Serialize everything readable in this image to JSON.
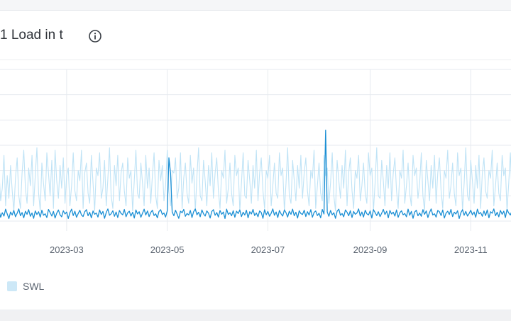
{
  "panel": {
    "title": "1 Load in t",
    "info_icon": "info-circle-icon"
  },
  "colors": {
    "series_light": "#bfe3f6",
    "series_dark": "#1b8fd4",
    "grid": "#e6eaef",
    "tick_text": "#5b6470",
    "legend_swatch": "#cde8f7"
  },
  "legend": {
    "label": "SWL"
  },
  "chart_data": {
    "type": "line",
    "title": "1 Load in t",
    "xlabel": "",
    "ylabel": "",
    "x_ticks": [
      "2023-03",
      "2023-05",
      "2023-07",
      "2023-09",
      "2023-11"
    ],
    "x_range": [
      "2023-01-11",
      "2023-12-04"
    ],
    "y_range": [
      0,
      6
    ],
    "grid": true,
    "legend_position": "bottom-left",
    "series": [
      {
        "name": "SWL",
        "style": "light",
        "sampling": "daily",
        "start": "2023-01-11",
        "values": [
          1.6,
          2.3,
          0.4,
          1.9,
          1.1,
          2.7,
          0.3,
          1.5,
          2.0,
          0.8,
          1.3,
          2.6,
          0.6,
          1.8,
          0.9,
          2.2,
          1.2,
          0.4,
          1.7,
          2.5,
          1.0,
          0.5,
          1.9,
          2.8,
          1.3,
          0.7,
          2.1,
          1.4,
          2.6,
          0.6,
          1.8,
          2.9,
          1.1,
          0.4,
          2.3,
          1.5,
          0.8,
          2.7,
          1.9,
          1.0,
          2.4,
          0.5,
          2.8,
          1.6,
          0.9,
          2.2,
          1.3,
          2.5,
          0.7,
          1.8,
          2.1,
          0.6,
          1.4,
          2.7,
          1.2,
          0.8,
          2.0,
          1.6,
          2.8,
          0.5,
          1.9,
          2.3,
          1.1,
          0.7,
          2.6,
          1.5,
          0.4,
          2.1,
          1.8,
          2.7,
          0.9,
          1.3,
          2.4,
          0.6,
          1.7,
          2.9,
          1.0,
          0.5,
          2.2,
          1.4,
          2.6,
          0.8,
          1.9,
          2.3,
          1.2,
          0.6,
          2.5,
          1.7,
          2.0,
          0.4,
          1.6,
          2.8,
          1.1,
          0.9,
          2.3,
          1.5,
          0.6,
          2.6,
          1.3,
          2.1,
          0.7,
          1.8,
          2.7,
          1.0,
          0.5,
          2.4,
          1.6,
          2.2,
          0.8,
          1.4,
          2.8,
          1.2,
          0.6,
          2.0,
          1.9,
          2.5,
          0.9,
          1.3,
          2.7,
          0.5,
          1.7,
          2.3,
          1.1,
          0.7,
          2.6,
          1.5,
          2.1,
          0.4,
          1.8,
          2.9,
          1.0,
          0.8,
          2.4,
          1.6,
          0.6,
          2.2,
          1.4,
          2.7,
          0.9,
          1.9,
          2.5,
          1.2,
          0.5,
          2.0,
          1.7,
          2.8,
          0.7,
          1.3,
          2.3,
          1.1,
          0.6,
          2.6,
          1.8,
          2.1,
          0.4,
          1.5,
          2.7,
          1.0,
          0.9,
          2.4,
          1.6,
          0.7,
          2.2,
          1.3,
          2.8,
          0.8,
          1.9,
          2.5,
          1.2,
          0.5,
          2.0,
          1.7,
          2.6,
          0.6,
          1.4,
          2.3,
          1.1,
          0.9,
          2.7,
          1.8,
          2.1,
          0.4,
          1.5,
          2.9,
          1.0,
          0.7,
          2.4,
          1.6,
          0.8,
          2.2,
          1.3,
          2.6,
          0.9,
          1.9,
          2.5,
          1.2,
          0.6,
          2.0,
          1.7,
          2.8,
          0.5,
          1.4,
          2.3,
          1.1,
          0.8,
          2.6,
          1.8,
          2.1,
          0.7,
          1.5,
          2.7,
          1.0,
          0.4,
          2.4,
          1.6,
          0.9,
          2.2,
          1.3,
          2.8,
          0.6,
          1.9,
          2.5,
          1.2,
          0.5,
          2.0,
          1.7,
          2.6,
          0.8,
          1.4,
          2.3,
          1.1,
          0.7,
          2.7,
          1.8,
          2.1,
          0.4,
          1.5,
          2.9,
          1.0,
          0.9,
          2.4,
          1.6,
          0.6,
          2.2,
          1.3,
          2.7,
          0.8,
          1.9,
          2.5,
          1.2,
          0.5,
          2.0,
          1.7,
          2.8,
          0.7,
          1.4,
          2.3,
          1.1,
          0.6,
          2.6,
          1.8,
          2.1,
          0.9,
          1.5,
          2.7,
          1.0,
          0.4,
          2.4,
          1.6,
          0.8,
          2.2,
          1.3,
          2.6,
          0.7,
          1.9,
          2.5,
          1.2,
          0.5,
          2.0,
          1.7,
          2.8,
          0.9,
          1.4,
          2.3,
          1.1,
          0.6,
          2.7,
          1.8,
          2.1,
          0.4,
          1.5,
          2.9,
          1.0,
          0.8,
          2.4,
          1.6,
          0.7,
          2.2,
          1.3,
          2.6,
          0.5,
          1.9,
          2.5,
          1.2,
          0.9,
          2.0,
          1.7,
          2.8,
          0.6,
          1.4,
          2.3,
          1.1,
          0.8,
          2.6,
          1.8,
          2.1,
          0.4,
          1.5,
          2.7,
          1.0
        ]
      },
      {
        "name": "",
        "style": "dark",
        "sampling": "daily",
        "start": "2023-01-11",
        "values": [
          0.35,
          0.22,
          0.41,
          0.18,
          0.3,
          0.12,
          0.38,
          0.25,
          0.44,
          0.15,
          0.33,
          0.2,
          0.47,
          0.28,
          0.1,
          0.36,
          0.24,
          0.42,
          0.17,
          0.31,
          0.48,
          0.21,
          0.34,
          0.13,
          0.39,
          0.27,
          0.45,
          0.19,
          0.32,
          0.11,
          0.4,
          0.26,
          0.37,
          0.16,
          0.43,
          0.23,
          0.29,
          0.14,
          0.46,
          0.34,
          0.2,
          0.38,
          0.12,
          0.31,
          0.44,
          0.25,
          0.17,
          0.41,
          0.28,
          0.36,
          0.1,
          0.33,
          0.47,
          0.22,
          0.39,
          0.15,
          0.3,
          0.43,
          0.24,
          0.18,
          0.37,
          0.45,
          0.21,
          0.35,
          0.13,
          0.4,
          0.27,
          0.32,
          0.16,
          0.44,
          0.26,
          0.38,
          0.11,
          0.34,
          0.48,
          0.23,
          0.29,
          0.41,
          0.19,
          0.36,
          0.14,
          0.42,
          0.3,
          0.25,
          0.46,
          0.17,
          0.33,
          0.39,
          0.2,
          0.35,
          0.12,
          0.44,
          0.28,
          0.37,
          0.15,
          0.31,
          0.47,
          0.24,
          0.4,
          0.18,
          0.34,
          0.43,
          0.22,
          0.29,
          0.13,
          0.38,
          0.45,
          0.26,
          0.32,
          0.16,
          0.41,
          2.5,
          1.9,
          0.36,
          0.21,
          0.43,
          0.27,
          0.11,
          0.39,
          0.33,
          0.46,
          0.19,
          0.3,
          0.24,
          0.42,
          0.14,
          0.37,
          0.48,
          0.25,
          0.35,
          0.17,
          0.44,
          0.29,
          0.2,
          0.4,
          0.31,
          0.12,
          0.38,
          0.45,
          0.23,
          0.34,
          0.16,
          0.42,
          0.27,
          0.36,
          0.1,
          0.47,
          0.26,
          0.33,
          0.21,
          0.41,
          0.15,
          0.39,
          0.3,
          0.44,
          0.18,
          0.35,
          0.24,
          0.43,
          0.13,
          0.37,
          0.28,
          0.46,
          0.22,
          0.32,
          0.17,
          0.4,
          0.34,
          0.11,
          0.45,
          0.25,
          0.38,
          0.19,
          0.31,
          0.48,
          0.23,
          0.36,
          0.14,
          0.42,
          0.29,
          0.2,
          0.44,
          0.33,
          0.16,
          0.39,
          0.27,
          0.47,
          0.21,
          0.35,
          0.12,
          0.41,
          0.3,
          0.26,
          0.43,
          0.18,
          0.37,
          0.24,
          0.45,
          0.15,
          0.34,
          0.4,
          0.22,
          0.31,
          0.13,
          0.46,
          0.28,
          3.6,
          0.36,
          0.19,
          0.42,
          0.25,
          0.33,
          0.11,
          0.39,
          0.47,
          0.23,
          0.3,
          0.17,
          0.44,
          0.35,
          0.21,
          0.41,
          0.14,
          0.38,
          0.27,
          0.32,
          0.48,
          0.2,
          0.36,
          0.16,
          0.43,
          0.29,
          0.24,
          0.4,
          0.12,
          0.45,
          0.34,
          0.22,
          0.37,
          0.18,
          0.31,
          0.46,
          0.26,
          0.39,
          0.13,
          0.42,
          0.28,
          0.35,
          0.2,
          0.44,
          0.15,
          0.33,
          0.41,
          0.25,
          0.3,
          0.17,
          0.47,
          0.23,
          0.38,
          0.11,
          0.36,
          0.43,
          0.21,
          0.32,
          0.19,
          0.45,
          0.27,
          0.4,
          0.14,
          0.34,
          0.48,
          0.24,
          0.29,
          0.16,
          0.42,
          0.37,
          0.22,
          0.44,
          0.12,
          0.31,
          0.39,
          0.26,
          0.46,
          0.18,
          0.35,
          0.28,
          0.41,
          0.1,
          0.33,
          0.45,
          0.23,
          0.38,
          0.2,
          0.3,
          0.43,
          0.25,
          0.36,
          0.15,
          0.47,
          0.29,
          0.34,
          0.19,
          0.4,
          0.22,
          0.44,
          0.13,
          0.37,
          0.31,
          0.48,
          0.21,
          0.35,
          0.17,
          0.42,
          0.27,
          0.39,
          0.14,
          0.46,
          0.32,
          0.24,
          0.41,
          0.18,
          0.33,
          0.45
        ]
      }
    ]
  }
}
